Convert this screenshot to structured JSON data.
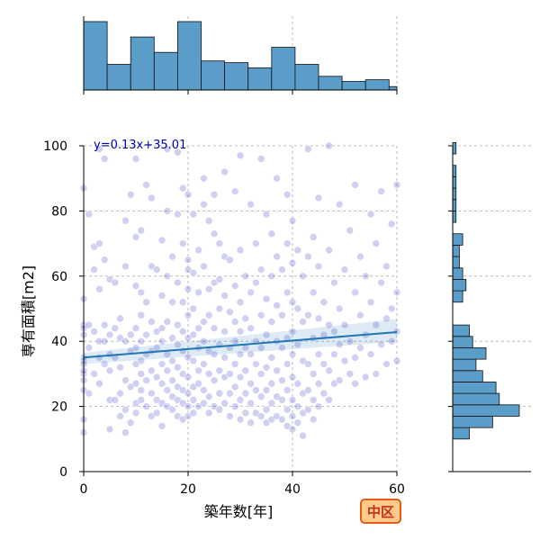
{
  "chart_data": {
    "type": "scatter",
    "xlabel": "築年数[年]",
    "ylabel": "専有面積[m2]",
    "xlim": [
      0,
      60
    ],
    "ylim": [
      0,
      100
    ],
    "xticks": [
      0,
      20,
      40,
      60
    ],
    "yticks": [
      0,
      20,
      40,
      60,
      80,
      100
    ],
    "grid": true,
    "annotation": "y=0.13x+35.01",
    "badge": "中区",
    "regression": {
      "slope": 0.13,
      "intercept": 35.01
    },
    "points": [
      [
        0,
        45
      ],
      [
        0,
        44
      ],
      [
        0,
        42
      ],
      [
        0,
        35
      ],
      [
        0,
        34
      ],
      [
        0,
        30
      ],
      [
        0,
        28
      ],
      [
        0,
        25
      ],
      [
        0,
        53
      ],
      [
        0,
        16
      ],
      [
        0,
        12
      ],
      [
        0,
        87
      ],
      [
        0,
        33
      ],
      [
        0,
        31
      ],
      [
        1,
        79
      ],
      [
        1,
        45
      ],
      [
        1,
        38
      ],
      [
        1,
        24
      ],
      [
        2,
        69
      ],
      [
        2,
        62
      ],
      [
        2,
        43
      ],
      [
        2,
        30
      ],
      [
        3,
        99
      ],
      [
        3,
        70
      ],
      [
        3,
        56
      ],
      [
        3,
        40
      ],
      [
        3,
        35
      ],
      [
        3,
        27
      ],
      [
        4,
        96
      ],
      [
        4,
        65
      ],
      [
        4,
        45
      ],
      [
        4,
        40
      ],
      [
        4,
        33
      ],
      [
        5,
        59
      ],
      [
        5,
        42
      ],
      [
        5,
        36
      ],
      [
        5,
        31
      ],
      [
        5,
        22
      ],
      [
        5,
        13
      ],
      [
        6,
        58
      ],
      [
        6,
        44
      ],
      [
        6,
        35
      ],
      [
        6,
        22
      ],
      [
        7,
        47
      ],
      [
        7,
        41
      ],
      [
        7,
        32
      ],
      [
        7,
        24
      ],
      [
        7,
        17
      ],
      [
        8,
        77
      ],
      [
        8,
        63
      ],
      [
        8,
        40
      ],
      [
        8,
        28
      ],
      [
        8,
        19
      ],
      [
        8,
        12
      ],
      [
        9,
        85
      ],
      [
        9,
        42
      ],
      [
        9,
        37
      ],
      [
        9,
        26
      ],
      [
        9,
        15
      ],
      [
        10,
        96
      ],
      [
        10,
        72
      ],
      [
        10,
        57
      ],
      [
        10,
        44
      ],
      [
        10,
        38
      ],
      [
        10,
        33
      ],
      [
        10,
        27
      ],
      [
        10,
        21
      ],
      [
        10,
        18
      ],
      [
        11,
        74
      ],
      [
        11,
        55
      ],
      [
        11,
        48
      ],
      [
        11,
        40
      ],
      [
        11,
        34
      ],
      [
        11,
        30
      ],
      [
        11,
        25
      ],
      [
        11,
        22
      ],
      [
        12,
        88
      ],
      [
        12,
        52
      ],
      [
        12,
        42
      ],
      [
        12,
        36
      ],
      [
        12,
        28
      ],
      [
        12,
        20
      ],
      [
        13,
        84
      ],
      [
        13,
        63
      ],
      [
        13,
        46
      ],
      [
        13,
        37
      ],
      [
        13,
        31
      ],
      [
        13,
        24
      ],
      [
        13,
        17
      ],
      [
        14,
        62
      ],
      [
        14,
        43
      ],
      [
        14,
        38
      ],
      [
        14,
        29
      ],
      [
        14,
        22
      ],
      [
        14,
        18
      ],
      [
        15,
        71
      ],
      [
        15,
        54
      ],
      [
        15,
        44
      ],
      [
        15,
        40
      ],
      [
        15,
        33
      ],
      [
        15,
        27
      ],
      [
        15,
        21
      ],
      [
        15,
        14
      ],
      [
        16,
        99
      ],
      [
        16,
        80
      ],
      [
        16,
        60
      ],
      [
        16,
        46
      ],
      [
        16,
        36
      ],
      [
        16,
        31
      ],
      [
        16,
        25
      ],
      [
        16,
        20
      ],
      [
        17,
        66
      ],
      [
        17,
        52
      ],
      [
        17,
        41
      ],
      [
        17,
        34
      ],
      [
        17,
        28
      ],
      [
        17,
        23
      ],
      [
        17,
        19
      ],
      [
        18,
        98
      ],
      [
        18,
        79
      ],
      [
        18,
        58
      ],
      [
        18,
        45
      ],
      [
        18,
        39
      ],
      [
        18,
        32
      ],
      [
        18,
        26
      ],
      [
        18,
        22
      ],
      [
        18,
        17
      ],
      [
        19,
        87
      ],
      [
        19,
        70
      ],
      [
        19,
        52
      ],
      [
        19,
        43
      ],
      [
        19,
        37
      ],
      [
        19,
        30
      ],
      [
        19,
        25
      ],
      [
        19,
        21
      ],
      [
        19,
        16
      ],
      [
        20,
        85
      ],
      [
        20,
        65
      ],
      [
        20,
        62
      ],
      [
        20,
        56
      ],
      [
        20,
        48
      ],
      [
        20,
        41
      ],
      [
        20,
        35
      ],
      [
        20,
        29
      ],
      [
        20,
        24
      ],
      [
        20,
        20
      ],
      [
        20,
        17
      ],
      [
        21,
        79
      ],
      [
        21,
        61
      ],
      [
        21,
        50
      ],
      [
        21,
        42
      ],
      [
        21,
        34
      ],
      [
        21,
        26
      ],
      [
        21,
        22
      ],
      [
        21,
        18
      ],
      [
        22,
        68
      ],
      [
        22,
        55
      ],
      [
        22,
        44
      ],
      [
        22,
        38
      ],
      [
        22,
        31
      ],
      [
        22,
        27
      ],
      [
        22,
        20
      ],
      [
        23,
        90
      ],
      [
        23,
        82
      ],
      [
        23,
        63
      ],
      [
        23,
        46
      ],
      [
        23,
        40
      ],
      [
        23,
        33
      ],
      [
        23,
        25
      ],
      [
        23,
        21
      ],
      [
        24,
        77
      ],
      [
        24,
        56
      ],
      [
        24,
        48
      ],
      [
        24,
        37
      ],
      [
        24,
        30
      ],
      [
        24,
        23
      ],
      [
        24,
        18
      ],
      [
        25,
        85
      ],
      [
        25,
        73
      ],
      [
        25,
        58
      ],
      [
        25,
        44
      ],
      [
        25,
        36
      ],
      [
        25,
        28
      ],
      [
        25,
        20
      ],
      [
        26,
        70
      ],
      [
        26,
        59
      ],
      [
        26,
        50
      ],
      [
        26,
        39
      ],
      [
        26,
        31
      ],
      [
        26,
        24
      ],
      [
        26,
        19
      ],
      [
        27,
        92
      ],
      [
        27,
        66
      ],
      [
        27,
        54
      ],
      [
        27,
        43
      ],
      [
        27,
        35
      ],
      [
        27,
        29
      ],
      [
        27,
        21
      ],
      [
        28,
        65
      ],
      [
        28,
        49
      ],
      [
        28,
        38
      ],
      [
        28,
        30
      ],
      [
        28,
        24
      ],
      [
        28,
        17
      ],
      [
        29,
        86
      ],
      [
        29,
        57
      ],
      [
        29,
        46
      ],
      [
        29,
        40
      ],
      [
        29,
        33
      ],
      [
        29,
        26
      ],
      [
        29,
        20
      ],
      [
        30,
        97
      ],
      [
        30,
        68
      ],
      [
        30,
        52
      ],
      [
        30,
        43
      ],
      [
        30,
        36
      ],
      [
        30,
        29
      ],
      [
        30,
        22
      ],
      [
        30,
        16
      ],
      [
        31,
        60
      ],
      [
        31,
        47
      ],
      [
        31,
        38
      ],
      [
        31,
        31
      ],
      [
        31,
        24
      ],
      [
        31,
        18
      ],
      [
        32,
        82
      ],
      [
        32,
        55
      ],
      [
        32,
        44
      ],
      [
        32,
        36
      ],
      [
        32,
        27
      ],
      [
        32,
        21
      ],
      [
        32,
        15
      ],
      [
        33,
        70
      ],
      [
        33,
        58
      ],
      [
        33,
        40
      ],
      [
        33,
        33
      ],
      [
        33,
        25
      ],
      [
        33,
        18
      ],
      [
        34,
        96
      ],
      [
        34,
        62
      ],
      [
        34,
        48
      ],
      [
        34,
        38
      ],
      [
        34,
        30
      ],
      [
        34,
        23
      ],
      [
        34,
        17
      ],
      [
        35,
        79
      ],
      [
        35,
        53
      ],
      [
        35,
        42
      ],
      [
        35,
        32
      ],
      [
        35,
        25
      ],
      [
        35,
        19
      ],
      [
        35,
        15
      ],
      [
        36,
        73
      ],
      [
        36,
        60
      ],
      [
        36,
        46
      ],
      [
        36,
        35
      ],
      [
        36,
        27
      ],
      [
        36,
        21
      ],
      [
        36,
        16
      ],
      [
        37,
        90
      ],
      [
        37,
        66
      ],
      [
        37,
        51
      ],
      [
        37,
        40
      ],
      [
        37,
        31
      ],
      [
        37,
        23
      ],
      [
        37,
        17
      ],
      [
        38,
        62
      ],
      [
        38,
        48
      ],
      [
        38,
        38
      ],
      [
        38,
        28
      ],
      [
        38,
        22
      ],
      [
        38,
        16
      ],
      [
        39,
        85
      ],
      [
        39,
        70
      ],
      [
        39,
        55
      ],
      [
        39,
        41
      ],
      [
        39,
        33
      ],
      [
        39,
        25
      ],
      [
        39,
        19
      ],
      [
        39,
        14
      ],
      [
        40,
        77
      ],
      [
        40,
        64
      ],
      [
        40,
        52
      ],
      [
        40,
        43
      ],
      [
        40,
        36
      ],
      [
        40,
        29
      ],
      [
        40,
        22
      ],
      [
        40,
        17
      ],
      [
        40,
        13
      ],
      [
        41,
        68
      ],
      [
        41,
        50
      ],
      [
        41,
        39
      ],
      [
        41,
        27
      ],
      [
        41,
        20
      ],
      [
        41,
        15
      ],
      [
        42,
        60
      ],
      [
        42,
        46
      ],
      [
        42,
        34
      ],
      [
        42,
        24
      ],
      [
        42,
        18
      ],
      [
        42,
        11
      ],
      [
        43,
        99
      ],
      [
        43,
        66
      ],
      [
        43,
        48
      ],
      [
        43,
        33
      ],
      [
        43,
        25
      ],
      [
        43,
        19
      ],
      [
        44,
        72
      ],
      [
        44,
        55
      ],
      [
        44,
        41
      ],
      [
        44,
        30
      ],
      [
        44,
        22
      ],
      [
        44,
        16
      ],
      [
        45,
        84
      ],
      [
        45,
        63
      ],
      [
        45,
        47
      ],
      [
        45,
        36
      ],
      [
        45,
        27
      ],
      [
        45,
        20
      ],
      [
        46,
        52
      ],
      [
        46,
        42
      ],
      [
        46,
        33
      ],
      [
        46,
        24
      ],
      [
        47,
        100
      ],
      [
        47,
        68
      ],
      [
        47,
        45
      ],
      [
        47,
        31
      ],
      [
        47,
        22
      ],
      [
        48,
        58
      ],
      [
        48,
        43
      ],
      [
        48,
        36
      ],
      [
        48,
        27
      ],
      [
        49,
        82
      ],
      [
        49,
        50
      ],
      [
        49,
        39
      ],
      [
        49,
        28
      ],
      [
        50,
        62
      ],
      [
        50,
        45
      ],
      [
        50,
        34
      ],
      [
        51,
        74
      ],
      [
        51,
        40
      ],
      [
        51,
        30
      ],
      [
        52,
        88
      ],
      [
        52,
        55
      ],
      [
        52,
        35
      ],
      [
        52,
        27
      ],
      [
        53,
        66
      ],
      [
        53,
        48
      ],
      [
        53,
        38
      ],
      [
        54,
        60
      ],
      [
        54,
        42
      ],
      [
        54,
        29
      ],
      [
        55,
        79
      ],
      [
        55,
        52
      ],
      [
        55,
        36
      ],
      [
        56,
        70
      ],
      [
        56,
        45
      ],
      [
        56,
        30
      ],
      [
        57,
        86
      ],
      [
        57,
        58
      ],
      [
        57,
        39
      ],
      [
        58,
        63
      ],
      [
        58,
        47
      ],
      [
        58,
        33
      ],
      [
        59,
        76
      ],
      [
        59,
        50
      ],
      [
        59,
        40
      ],
      [
        60,
        88
      ],
      [
        60,
        55
      ],
      [
        60,
        43
      ],
      [
        60,
        34
      ]
    ],
    "marginal_x_hist": {
      "bin_edges": [
        0,
        4.5,
        9,
        13.5,
        18,
        22.5,
        27,
        31.5,
        36,
        40.5,
        45,
        49.5,
        54,
        58.5,
        60
      ],
      "counts": [
        40,
        15,
        31,
        22,
        40,
        17,
        16,
        13,
        25,
        15,
        8,
        5,
        6,
        2
      ]
    },
    "marginal_y_hist": {
      "bin_edges": [
        10,
        13.5,
        17,
        20.5,
        24,
        27.5,
        31,
        34.5,
        38,
        41.5,
        45,
        48.5,
        52,
        55.5,
        59,
        62.5,
        66,
        69.5,
        73,
        76.5,
        80,
        83.5,
        87,
        90.5,
        94,
        97.5,
        101
      ],
      "counts": [
        5,
        12,
        20,
        14,
        13,
        9,
        7,
        10,
        6,
        5,
        0,
        0,
        3,
        4,
        3,
        2,
        2,
        3,
        0,
        1,
        1,
        1,
        1,
        1,
        0,
        1
      ]
    }
  }
}
